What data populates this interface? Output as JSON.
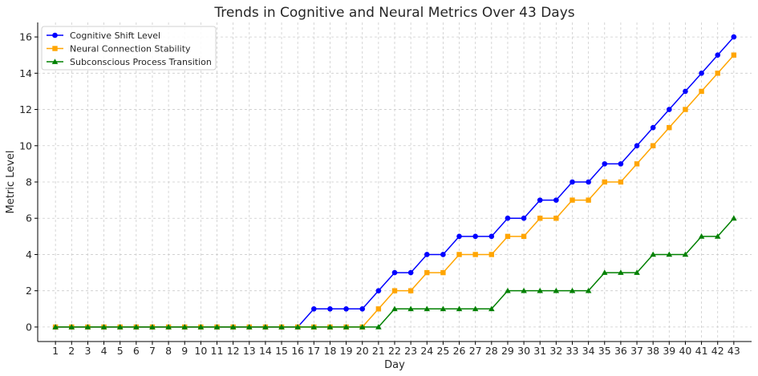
{
  "chart_data": {
    "type": "line",
    "title": "Trends in Cognitive and Neural Metrics Over 43 Days",
    "xlabel": "Day",
    "ylabel": "Metric Level",
    "x": [
      1,
      2,
      3,
      4,
      5,
      6,
      7,
      8,
      9,
      10,
      11,
      12,
      13,
      14,
      15,
      16,
      17,
      18,
      19,
      20,
      21,
      22,
      23,
      24,
      25,
      26,
      27,
      28,
      29,
      30,
      31,
      32,
      33,
      34,
      35,
      36,
      37,
      38,
      39,
      40,
      41,
      42,
      43
    ],
    "xlim": [
      -0.1,
      44.1
    ],
    "ylim": [
      -0.8,
      16.8
    ],
    "yticks": [
      0,
      2,
      4,
      6,
      8,
      10,
      12,
      14,
      16
    ],
    "grid": true,
    "legend_position": "upper-left",
    "series": [
      {
        "name": "Cognitive Shift Level",
        "color": "#0000ff",
        "marker": "circle",
        "values": [
          0,
          0,
          0,
          0,
          0,
          0,
          0,
          0,
          0,
          0,
          0,
          0,
          0,
          0,
          0,
          0,
          1,
          1,
          1,
          1,
          2,
          3,
          3,
          4,
          4,
          5,
          5,
          5,
          6,
          6,
          7,
          7,
          8,
          8,
          9,
          9,
          10,
          11,
          12,
          13,
          14,
          15,
          16
        ]
      },
      {
        "name": "Neural Connection Stability",
        "color": "#ffa500",
        "marker": "square",
        "values": [
          0,
          0,
          0,
          0,
          0,
          0,
          0,
          0,
          0,
          0,
          0,
          0,
          0,
          0,
          0,
          0,
          0,
          0,
          0,
          0,
          1,
          2,
          2,
          3,
          3,
          4,
          4,
          4,
          5,
          5,
          6,
          6,
          7,
          7,
          8,
          8,
          9,
          10,
          11,
          12,
          13,
          14,
          15
        ]
      },
      {
        "name": "Subconscious Process Transition",
        "color": "#008000",
        "marker": "triangle",
        "values": [
          0,
          0,
          0,
          0,
          0,
          0,
          0,
          0,
          0,
          0,
          0,
          0,
          0,
          0,
          0,
          0,
          0,
          0,
          0,
          0,
          0,
          1,
          1,
          1,
          1,
          1,
          1,
          1,
          2,
          2,
          2,
          2,
          2,
          2,
          3,
          3,
          3,
          4,
          4,
          4,
          5,
          5,
          6
        ]
      }
    ]
  }
}
